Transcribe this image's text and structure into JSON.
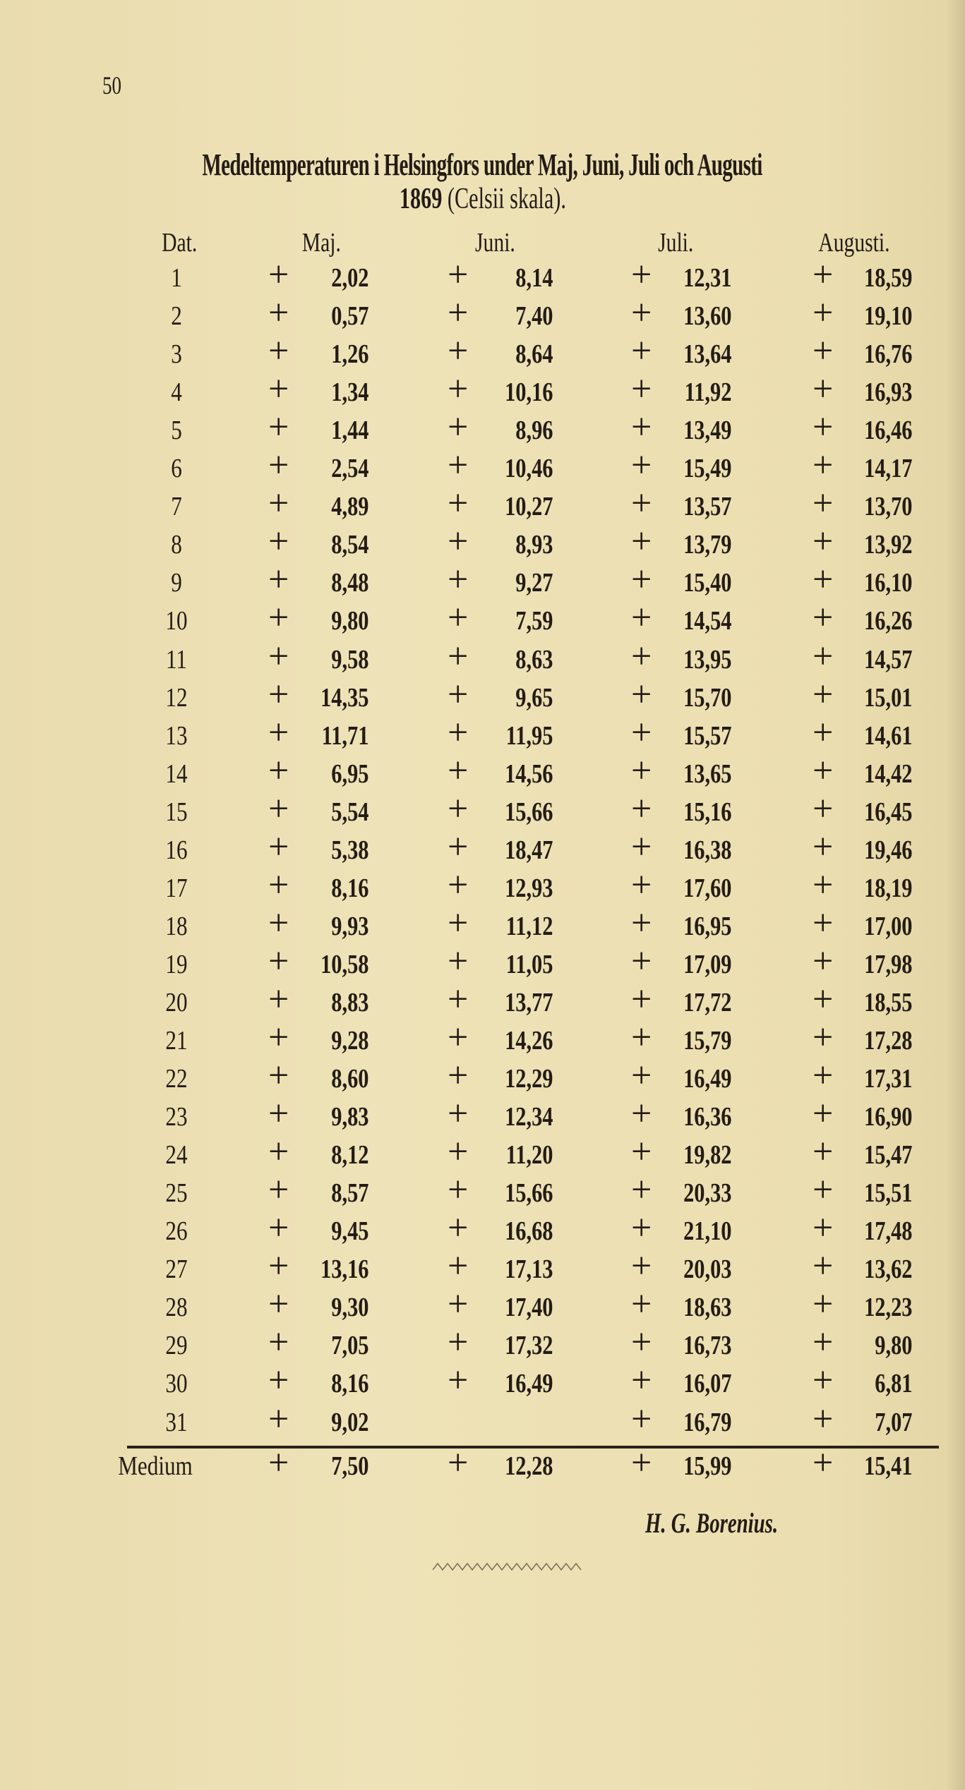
{
  "page_number": "50",
  "title": "Medeltemperaturen i Helsingfors under Maj, Juni, Juli och Augusti",
  "subtitle_year": "1869",
  "subtitle_rest": "(Celsii skala).",
  "table": {
    "headers": {
      "date": "Dat.",
      "maj": "Maj.",
      "juni": "Juni.",
      "juli": "Juli.",
      "augusti": "Augusti."
    },
    "sign": "+",
    "rows": [
      {
        "date": "1",
        "maj": "2,02",
        "juni": "8,14",
        "juli": "12,31",
        "augusti": "18,59"
      },
      {
        "date": "2",
        "maj": "0,57",
        "juni": "7,40",
        "juli": "13,60",
        "augusti": "19,10"
      },
      {
        "date": "3",
        "maj": "1,26",
        "juni": "8,64",
        "juli": "13,64",
        "augusti": "16,76"
      },
      {
        "date": "4",
        "maj": "1,34",
        "juni": "10,16",
        "juli": "11,92",
        "augusti": "16,93"
      },
      {
        "date": "5",
        "maj": "1,44",
        "juni": "8,96",
        "juli": "13,49",
        "augusti": "16,46"
      },
      {
        "date": "6",
        "maj": "2,54",
        "juni": "10,46",
        "juli": "15,49",
        "augusti": "14,17"
      },
      {
        "date": "7",
        "maj": "4,89",
        "juni": "10,27",
        "juli": "13,57",
        "augusti": "13,70"
      },
      {
        "date": "8",
        "maj": "8,54",
        "juni": "8,93",
        "juli": "13,79",
        "augusti": "13,92"
      },
      {
        "date": "9",
        "maj": "8,48",
        "juni": "9,27",
        "juli": "15,40",
        "augusti": "16,10"
      },
      {
        "date": "10",
        "maj": "9,80",
        "juni": "7,59",
        "juli": "14,54",
        "augusti": "16,26"
      },
      {
        "date": "11",
        "maj": "9,58",
        "juni": "8,63",
        "juli": "13,95",
        "augusti": "14,57"
      },
      {
        "date": "12",
        "maj": "14,35",
        "juni": "9,65",
        "juli": "15,70",
        "augusti": "15,01"
      },
      {
        "date": "13",
        "maj": "11,71",
        "juni": "11,95",
        "juli": "15,57",
        "augusti": "14,61"
      },
      {
        "date": "14",
        "maj": "6,95",
        "juni": "14,56",
        "juli": "13,65",
        "augusti": "14,42"
      },
      {
        "date": "15",
        "maj": "5,54",
        "juni": "15,66",
        "juli": "15,16",
        "augusti": "16,45"
      },
      {
        "date": "16",
        "maj": "5,38",
        "juni": "18,47",
        "juli": "16,38",
        "augusti": "19,46"
      },
      {
        "date": "17",
        "maj": "8,16",
        "juni": "12,93",
        "juli": "17,60",
        "augusti": "18,19"
      },
      {
        "date": "18",
        "maj": "9,93",
        "juni": "11,12",
        "juli": "16,95",
        "augusti": "17,00"
      },
      {
        "date": "19",
        "maj": "10,58",
        "juni": "11,05",
        "juli": "17,09",
        "augusti": "17,98"
      },
      {
        "date": "20",
        "maj": "8,83",
        "juni": "13,77",
        "juli": "17,72",
        "augusti": "18,55"
      },
      {
        "date": "21",
        "maj": "9,28",
        "juni": "14,26",
        "juli": "15,79",
        "augusti": "17,28"
      },
      {
        "date": "22",
        "maj": "8,60",
        "juni": "12,29",
        "juli": "16,49",
        "augusti": "17,31"
      },
      {
        "date": "23",
        "maj": "9,83",
        "juni": "12,34",
        "juli": "16,36",
        "augusti": "16,90"
      },
      {
        "date": "24",
        "maj": "8,12",
        "juni": "11,20",
        "juli": "19,82",
        "augusti": "15,47"
      },
      {
        "date": "25",
        "maj": "8,57",
        "juni": "15,66",
        "juli": "20,33",
        "augusti": "15,51"
      },
      {
        "date": "26",
        "maj": "9,45",
        "juni": "16,68",
        "juli": "21,10",
        "augusti": "17,48"
      },
      {
        "date": "27",
        "maj": "13,16",
        "juni": "17,13",
        "juli": "20,03",
        "augusti": "13,62"
      },
      {
        "date": "28",
        "maj": "9,30",
        "juni": "17,40",
        "juli": "18,63",
        "augusti": "12,23"
      },
      {
        "date": "29",
        "maj": "7,05",
        "juni": "17,32",
        "juli": "16,73",
        "augusti": "9,80"
      },
      {
        "date": "30",
        "maj": "8,16",
        "juni": "16,49",
        "juli": "16,07",
        "augusti": "6,81"
      },
      {
        "date": "31",
        "maj": "9,02",
        "juni": "",
        "juli": "16,79",
        "augusti": "7,07"
      }
    ],
    "medium": {
      "label": "Medium",
      "maj": "7,50",
      "juni": "12,28",
      "juli": "15,99",
      "augusti": "15,41"
    }
  },
  "signature": "H. G. Borenius."
}
